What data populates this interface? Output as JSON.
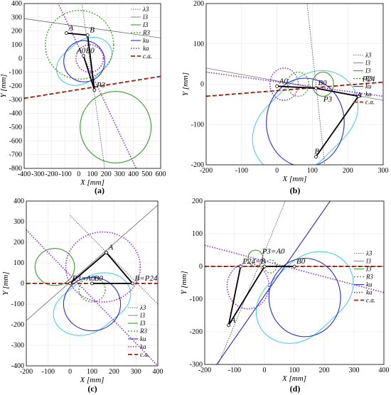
{
  "chart_data": [
    {
      "type": "line",
      "caption": "(a)",
      "xlabel": "X [mm]",
      "ylabel": "Y [mm]",
      "xlim": [
        -400,
        600
      ],
      "ylim": [
        -800,
        400
      ],
      "xticks": [
        -400,
        -300,
        -200,
        -100,
        0,
        100,
        200,
        300,
        400,
        500,
        600
      ],
      "yticks": [
        400,
        300,
        200,
        100,
        0,
        -100,
        -200,
        -300,
        -400,
        -500,
        -600,
        -700,
        -800
      ],
      "legend": [
        "λ3",
        "l3",
        "I3",
        "R3",
        "ku",
        "ka",
        "c.a."
      ],
      "legend_position": "top-right",
      "linkage": [
        [
          -90,
          185
        ],
        [
          65,
          170
        ],
        [
          115,
          -230
        ],
        [
          35,
          20
        ]
      ],
      "labels": [
        {
          "text": "A",
          "x": -90,
          "y": 185
        },
        {
          "text": "B",
          "x": 65,
          "y": 170
        },
        {
          "text": "A0",
          "x": -30,
          "y": 20
        },
        {
          "text": "B0",
          "x": 35,
          "y": 20
        },
        {
          "text": "P3",
          "x": 115,
          "y": -230
        }
      ],
      "lines": [
        {
          "role": "lambda3",
          "p1": [
            20,
            420
          ],
          "p2": [
            190,
            -800
          ]
        },
        {
          "role": "l3",
          "p1": [
            -400,
            290
          ],
          "p2": [
            600,
            150
          ]
        },
        {
          "role": "ka",
          "p1": [
            -160,
            420
          ],
          "p2": [
            420,
            -800
          ]
        },
        {
          "role": "ca",
          "p1": [
            -400,
            -290
          ],
          "p2": [
            600,
            -130
          ]
        }
      ],
      "circles": [
        {
          "role": "I3",
          "cx": 270,
          "cy": -500,
          "r": 260
        },
        {
          "role": "R3",
          "cx": 5,
          "cy": 100,
          "r": 250
        },
        {
          "role": "ku",
          "cx": 40,
          "cy": -20,
          "r": 150
        },
        {
          "role": "ka",
          "cx": 80,
          "cy": 0,
          "r": 100
        }
      ]
    },
    {
      "type": "line",
      "caption": "(b)",
      "xlabel": "X [mm]",
      "ylabel": "Y [mm]",
      "xlim": [
        -200,
        300
      ],
      "ylim": [
        -200,
        200
      ],
      "xticks": [
        -200,
        -100,
        0,
        100,
        200,
        300
      ],
      "yticks": [
        200,
        100,
        0,
        -100,
        -200
      ],
      "legend": [
        "λ3",
        "l3",
        "I3",
        "R3",
        "ku",
        "ka",
        "c.a."
      ],
      "legend_position": "right",
      "linkage": [
        [
          0,
          -5
        ],
        [
          110,
          -10
        ],
        [
          230,
          -30
        ],
        [
          110,
          -180
        ]
      ],
      "labels": [
        {
          "text": "A0",
          "x": 0,
          "y": -5
        },
        {
          "text": "B0",
          "x": 110,
          "y": -10
        },
        {
          "text": "P24",
          "x": 235,
          "y": 0
        },
        {
          "text": "P3",
          "x": 125,
          "y": -50
        },
        {
          "text": "A",
          "x": 220,
          "y": -40
        },
        {
          "text": "B",
          "x": 100,
          "y": -180
        }
      ],
      "lines": [
        {
          "role": "lambda3",
          "p1": [
            85,
            200
          ],
          "p2": [
            135,
            -200
          ]
        },
        {
          "role": "l3",
          "p1": [
            -200,
            40
          ],
          "p2": [
            300,
            -40
          ]
        },
        {
          "role": "ka",
          "p1": [
            -200,
            30
          ],
          "p2": [
            300,
            -30
          ]
        },
        {
          "role": "ca",
          "p1": [
            -200,
            -30
          ],
          "p2": [
            300,
            5
          ]
        }
      ],
      "circles": [
        {
          "role": "I3",
          "cx": 130,
          "cy": 0,
          "r": 30
        },
        {
          "role": "R3",
          "cx": 60,
          "cy": 0,
          "r": 30
        },
        {
          "role": "ku",
          "cx": 80,
          "cy": -95,
          "r": 110
        },
        {
          "role": "ka",
          "cx": 20,
          "cy": 0,
          "r": 40
        }
      ]
    },
    {
      "type": "line",
      "caption": "(c)",
      "xlabel": "X [mm]",
      "ylabel": "Y [mm]",
      "xlim": [
        -200,
        400
      ],
      "ylim": [
        -400,
        400
      ],
      "xticks": [
        -200,
        -100,
        0,
        100,
        200,
        300,
        400
      ],
      "yticks": [
        400,
        300,
        200,
        100,
        0,
        -100,
        -200,
        -300,
        -400
      ],
      "legend": [
        "λ3",
        "l3",
        "I3",
        "R3",
        "ku",
        "ka",
        "c.a."
      ],
      "legend_position": "bottom-right",
      "linkage": [
        [
          0,
          0
        ],
        [
          165,
          150
        ],
        [
          285,
          0
        ],
        [
          100,
          0
        ]
      ],
      "labels": [
        {
          "text": "P3=A0",
          "x": 0,
          "y": 0
        },
        {
          "text": "A",
          "x": 165,
          "y": 150
        },
        {
          "text": "B=P24",
          "x": 285,
          "y": 0
        },
        {
          "text": "B0",
          "x": 100,
          "y": 0
        }
      ],
      "lines": [
        {
          "role": "lambda3",
          "p1": [
            0,
            330
          ],
          "p2": [
            400,
            -100
          ]
        },
        {
          "role": "l3",
          "p1": [
            -200,
            -180
          ],
          "p2": [
            400,
            380
          ]
        },
        {
          "role": "ka",
          "p1": [
            -200,
            260
          ],
          "p2": [
            400,
            -400
          ]
        },
        {
          "role": "ca",
          "p1": [
            -200,
            0
          ],
          "p2": [
            400,
            0
          ]
        }
      ],
      "circles": [
        {
          "role": "I3",
          "cx": -70,
          "cy": 80,
          "r": 90
        },
        {
          "role": "R3",
          "cx": 100,
          "cy": -30,
          "r": 60
        },
        {
          "role": "ku",
          "cx": 100,
          "cy": -100,
          "r": 130
        },
        {
          "role": "ka",
          "cx": 150,
          "cy": 80,
          "r": 170
        }
      ]
    },
    {
      "type": "line",
      "caption": "(d)",
      "xlabel": "X [mm]",
      "ylabel": "Y [mm]",
      "xlim": [
        -200,
        400
      ],
      "ylim": [
        -300,
        200
      ],
      "xticks": [
        -200,
        -100,
        0,
        100,
        200,
        300,
        400
      ],
      "yticks": [
        200,
        100,
        0,
        -100,
        -200,
        -300
      ],
      "legend": [
        "λ3",
        "l3",
        "I3",
        "R3",
        "ku",
        "ka",
        "c.a."
      ],
      "legend_position": "right",
      "linkage": [
        [
          -80,
          0
        ],
        [
          -120,
          -180
        ],
        [
          0,
          0
        ],
        [
          100,
          0
        ]
      ],
      "labels": [
        {
          "text": "P24=B",
          "x": -80,
          "y": 0
        },
        {
          "text": "P3=A0",
          "x": -15,
          "y": 30
        },
        {
          "text": "B0",
          "x": 100,
          "y": 0
        },
        {
          "text": "A",
          "x": -120,
          "y": -180
        }
      ],
      "lines": [
        {
          "role": "lambda3",
          "p1": [
            -155,
            -300
          ],
          "p2": [
            70,
            200
          ]
        },
        {
          "role": "l3",
          "p1": [
            -200,
            0
          ],
          "p2": [
            400,
            0
          ]
        },
        {
          "role": "ka",
          "p1": [
            -200,
            65
          ],
          "p2": [
            400,
            -80
          ]
        },
        {
          "role": "ku",
          "p1": [
            -160,
            -300
          ],
          "p2": [
            220,
            200
          ]
        },
        {
          "role": "ca",
          "p1": [
            -200,
            0
          ],
          "p2": [
            400,
            0
          ]
        }
      ],
      "circles": [
        {
          "role": "I3",
          "cx": -30,
          "cy": 25,
          "r": 25
        },
        {
          "role": "R3",
          "cx": 20,
          "cy": 0,
          "r": 20
        },
        {
          "role": "ku",
          "cx": 135,
          "cy": -95,
          "r": 120
        },
        {
          "role": "ka",
          "cx": -55,
          "cy": -60,
          "r": 70
        }
      ]
    }
  ],
  "colors": {
    "lambda3": "#444444",
    "l3": "#555555",
    "I3": "#3c9a2c",
    "R3": "#3c9a2c",
    "ku": "#2b2bd0",
    "ka": "#8b2fc9",
    "ca": "#c0392b",
    "ca_dash": "#1a1a1a",
    "link": "#000000",
    "curve": "#3ecbe6"
  }
}
